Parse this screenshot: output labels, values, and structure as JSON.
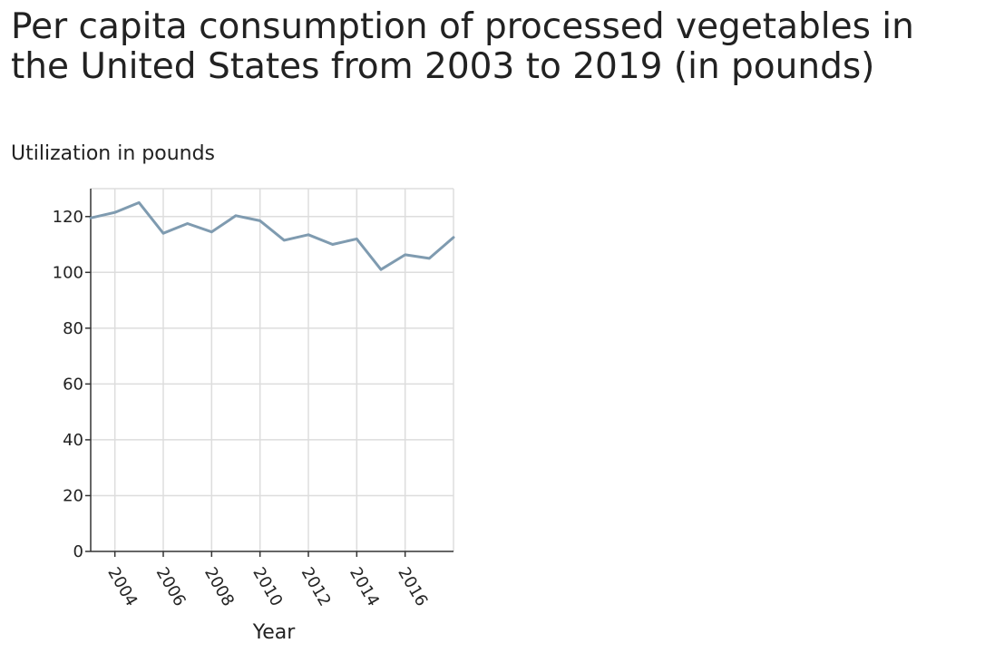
{
  "chart_data": {
    "type": "line",
    "title": "Per capita consumption of processed vegetables in the United States from 2003 to 2019 (in pounds)",
    "ylabel": "Utilization in pounds",
    "xlabel": "Year",
    "x": [
      2003,
      2004,
      2005,
      2006,
      2007,
      2008,
      2009,
      2010,
      2011,
      2012,
      2013,
      2014,
      2015,
      2016,
      2017,
      2018
    ],
    "values": [
      119.5,
      121.5,
      125,
      114,
      117.5,
      114.5,
      120.3,
      118.5,
      111.5,
      113.5,
      110,
      112,
      101,
      106.3,
      105,
      112.5
    ],
    "xlim": [
      2003,
      2018
    ],
    "ylim": [
      0,
      130
    ],
    "x_ticks": [
      "2004",
      "2006",
      "2008",
      "2010",
      "2012",
      "2014",
      "2016"
    ],
    "y_ticks": [
      "0",
      "20",
      "40",
      "60",
      "80",
      "100",
      "120"
    ],
    "grid": true,
    "line_color": "#7f9bb0"
  }
}
